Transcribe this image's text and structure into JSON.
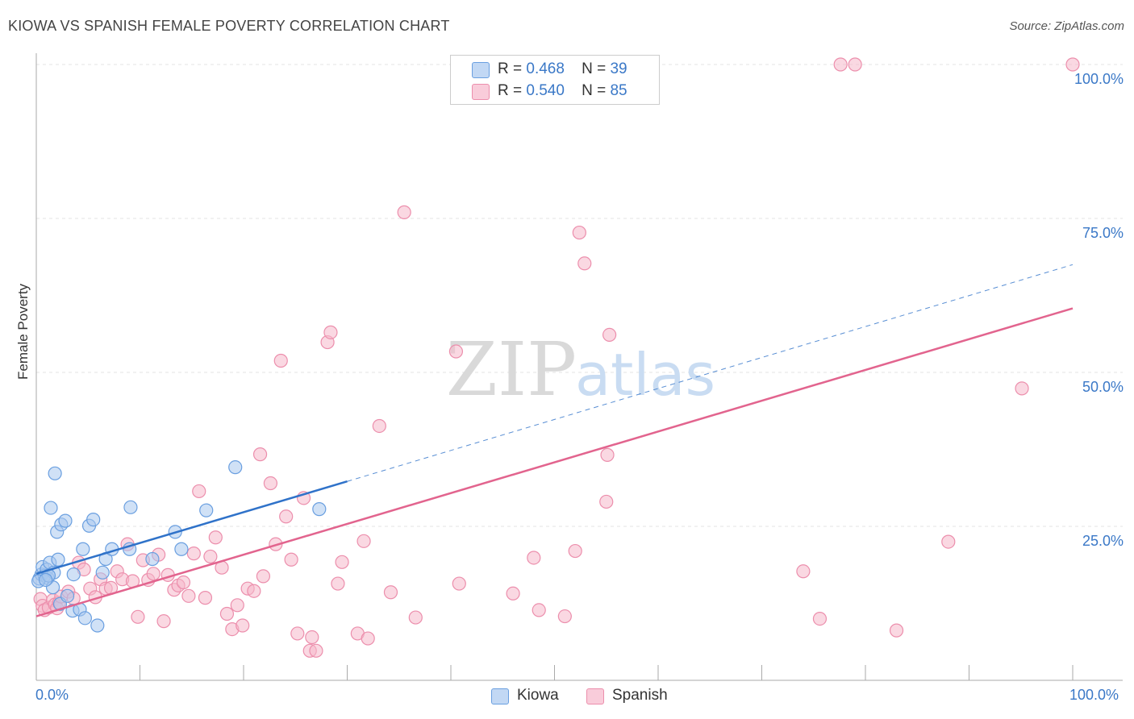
{
  "title": "KIOWA VS SPANISH FEMALE POVERTY CORRELATION CHART",
  "source": "Source: ZipAtlas.com",
  "watermark": {
    "zip": "ZIP",
    "atlas": "atlas"
  },
  "legend": {
    "kiowa": {
      "r_label": "R =",
      "r_value": "0.468",
      "n_label": "N =",
      "n_value": "39"
    },
    "spanish": {
      "r_label": "R =",
      "r_value": "0.540",
      "n_label": "N =",
      "n_value": "85"
    }
  },
  "bottom_legend": {
    "kiowa": "Kiowa",
    "spanish": "Spanish"
  },
  "colors": {
    "kiowa_fill": "#a9c8ee",
    "kiowa_stroke": "#6a9fe0",
    "kiowa_line": "#2f72c9",
    "spanish_fill": "#f6b8cb",
    "spanish_stroke": "#ec8eac",
    "spanish_line": "#e2648e",
    "tick_text": "#3a78c7"
  },
  "chart_data": {
    "type": "scatter",
    "title": "KIOWA VS SPANISH FEMALE POVERTY CORRELATION CHART",
    "xlabel": "",
    "ylabel": "Female Poverty",
    "xlim": [
      0,
      100
    ],
    "ylim": [
      0,
      100
    ],
    "x_tick_labels": [
      "0.0%",
      "100.0%"
    ],
    "y_ticks": [
      25,
      50,
      75,
      100
    ],
    "y_tick_labels": [
      "25.0%",
      "50.0%",
      "75.0%",
      "100.0%"
    ],
    "grid": true,
    "series": [
      {
        "name": "Kiowa",
        "r": 0.468,
        "n": 39,
        "points": [
          [
            0.3,
            16.5
          ],
          [
            0.5,
            17.2
          ],
          [
            0.6,
            18.4
          ],
          [
            0.8,
            17.0
          ],
          [
            1.0,
            18.0
          ],
          [
            1.1,
            16.6
          ],
          [
            1.3,
            19.1
          ],
          [
            1.4,
            28.0
          ],
          [
            1.6,
            15.1
          ],
          [
            1.7,
            17.5
          ],
          [
            1.8,
            33.6
          ],
          [
            2.0,
            24.1
          ],
          [
            2.1,
            19.6
          ],
          [
            2.3,
            12.4
          ],
          [
            2.4,
            25.3
          ],
          [
            2.8,
            25.9
          ],
          [
            3.0,
            13.7
          ],
          [
            3.5,
            11.3
          ],
          [
            3.6,
            17.2
          ],
          [
            4.2,
            11.5
          ],
          [
            4.5,
            21.3
          ],
          [
            4.7,
            10.1
          ],
          [
            5.1,
            25.1
          ],
          [
            5.5,
            26.1
          ],
          [
            5.9,
            8.9
          ],
          [
            6.4,
            17.5
          ],
          [
            6.7,
            19.7
          ],
          [
            7.3,
            21.3
          ],
          [
            9.1,
            28.1
          ],
          [
            9.0,
            21.3
          ],
          [
            11.2,
            19.7
          ],
          [
            13.4,
            24.1
          ],
          [
            14.0,
            21.3
          ],
          [
            16.4,
            27.6
          ],
          [
            19.2,
            34.6
          ],
          [
            27.3,
            27.8
          ],
          [
            0.2,
            16.1
          ],
          [
            1.2,
            17.0
          ],
          [
            0.9,
            16.3
          ]
        ],
        "trend": {
          "x0": 0,
          "y0": 17.3,
          "x1": 30,
          "y1": 32.3,
          "x_dash_end": 100,
          "y_dash_end": 67.5
        }
      },
      {
        "name": "Spanish",
        "r": 0.54,
        "n": 85,
        "points": [
          [
            0.4,
            13.2
          ],
          [
            0.6,
            12.1
          ],
          [
            0.8,
            11.4
          ],
          [
            1.2,
            11.8
          ],
          [
            1.6,
            13.0
          ],
          [
            1.8,
            12.3
          ],
          [
            2.0,
            11.7
          ],
          [
            2.2,
            12.6
          ],
          [
            2.4,
            13.6
          ],
          [
            3.1,
            14.4
          ],
          [
            3.6,
            13.3
          ],
          [
            4.1,
            19.1
          ],
          [
            4.6,
            18.0
          ],
          [
            5.2,
            14.9
          ],
          [
            5.7,
            13.5
          ],
          [
            6.2,
            16.4
          ],
          [
            6.7,
            14.9
          ],
          [
            7.2,
            15.0
          ],
          [
            7.8,
            17.7
          ],
          [
            8.3,
            16.4
          ],
          [
            8.8,
            22.1
          ],
          [
            9.3,
            16.1
          ],
          [
            9.8,
            10.3
          ],
          [
            10.3,
            19.5
          ],
          [
            10.8,
            16.3
          ],
          [
            11.3,
            17.3
          ],
          [
            11.8,
            20.4
          ],
          [
            12.3,
            9.6
          ],
          [
            12.7,
            17.1
          ],
          [
            13.3,
            14.7
          ],
          [
            13.7,
            15.4
          ],
          [
            14.2,
            15.9
          ],
          [
            14.7,
            13.7
          ],
          [
            15.2,
            20.6
          ],
          [
            15.7,
            30.7
          ],
          [
            16.3,
            13.4
          ],
          [
            16.8,
            20.1
          ],
          [
            17.3,
            23.2
          ],
          [
            17.9,
            18.3
          ],
          [
            18.4,
            10.8
          ],
          [
            18.9,
            8.3
          ],
          [
            19.4,
            12.2
          ],
          [
            19.9,
            8.9
          ],
          [
            20.4,
            14.9
          ],
          [
            21.0,
            14.5
          ],
          [
            21.6,
            36.7
          ],
          [
            21.9,
            16.9
          ],
          [
            22.6,
            32.0
          ],
          [
            23.1,
            22.1
          ],
          [
            23.6,
            51.9
          ],
          [
            24.1,
            26.6
          ],
          [
            24.6,
            19.6
          ],
          [
            25.2,
            7.6
          ],
          [
            25.8,
            29.6
          ],
          [
            26.4,
            4.8
          ],
          [
            26.6,
            7.0
          ],
          [
            27.0,
            4.8
          ],
          [
            28.1,
            54.9
          ],
          [
            28.4,
            56.5
          ],
          [
            29.1,
            15.7
          ],
          [
            29.5,
            19.2
          ],
          [
            31.0,
            7.6
          ],
          [
            31.6,
            22.6
          ],
          [
            32.0,
            6.8
          ],
          [
            33.1,
            41.3
          ],
          [
            34.2,
            14.3
          ],
          [
            35.5,
            76.0
          ],
          [
            36.6,
            10.2
          ],
          [
            40.5,
            53.4
          ],
          [
            40.8,
            15.7
          ],
          [
            46.0,
            14.1
          ],
          [
            48.0,
            19.9
          ],
          [
            48.5,
            11.4
          ],
          [
            51.0,
            10.4
          ],
          [
            52.0,
            21.0
          ],
          [
            52.4,
            72.7
          ],
          [
            52.9,
            67.7
          ],
          [
            55.3,
            56.1
          ],
          [
            55.1,
            36.6
          ],
          [
            55.0,
            29.0
          ],
          [
            74.0,
            17.7
          ],
          [
            75.6,
            10.0
          ],
          [
            77.6,
            100.0
          ],
          [
            79.0,
            100.0
          ],
          [
            83.0,
            8.1
          ]
        ],
        "extra_points": [
          [
            95.1,
            47.4
          ],
          [
            100.0,
            100.0
          ],
          [
            88.0,
            22.5
          ]
        ],
        "trend": {
          "x0": 0,
          "y0": 10.4,
          "x1": 100,
          "y1": 60.4
        }
      }
    ]
  }
}
